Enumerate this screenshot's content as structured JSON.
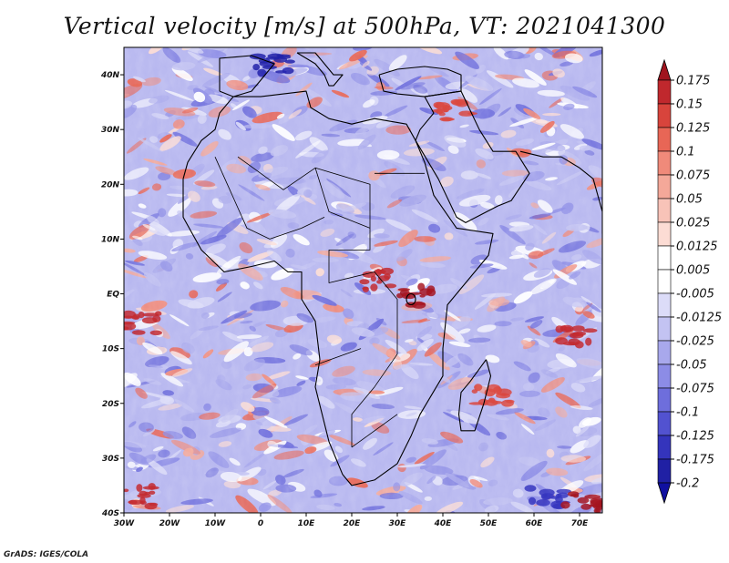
{
  "title": "Vertical velocity [m/s] at 500hPa, VT: 2021041300",
  "credit": "GrADS: IGES/COLA",
  "map": {
    "type": "filled contour map",
    "lon_range": [
      -30,
      75
    ],
    "lat_range": [
      -40,
      45
    ],
    "lon_ticks": [
      {
        "lon": -30,
        "label": "30W"
      },
      {
        "lon": -20,
        "label": "20W"
      },
      {
        "lon": -10,
        "label": "10W"
      },
      {
        "lon": 0,
        "label": "0"
      },
      {
        "lon": 10,
        "label": "10E"
      },
      {
        "lon": 20,
        "label": "20E"
      },
      {
        "lon": 30,
        "label": "30E"
      },
      {
        "lon": 40,
        "label": "40E"
      },
      {
        "lon": 50,
        "label": "50E"
      },
      {
        "lon": 60,
        "label": "60E"
      },
      {
        "lon": 70,
        "label": "70E"
      }
    ],
    "lat_ticks": [
      {
        "lat": 40,
        "label": "40N"
      },
      {
        "lat": 30,
        "label": "30N"
      },
      {
        "lat": 20,
        "label": "20N"
      },
      {
        "lat": 10,
        "label": "10N"
      },
      {
        "lat": 0,
        "label": "EQ"
      },
      {
        "lat": -10,
        "label": "10S"
      },
      {
        "lat": -20,
        "label": "20S"
      },
      {
        "lat": -30,
        "label": "30S"
      },
      {
        "lat": -40,
        "label": "40S"
      }
    ],
    "positive_color": "#e8433a",
    "negative_color": "#5a5ae6",
    "coastline_color": "#000000"
  },
  "colorbar": {
    "levels": [
      "0.175",
      "0.15",
      "0.125",
      "0.1",
      "0.075",
      "0.05",
      "0.025",
      "0.0125",
      "0.005",
      "-0.005",
      "-0.0125",
      "-0.025",
      "-0.05",
      "-0.075",
      "-0.1",
      "-0.125",
      "-0.175",
      "-0.2"
    ],
    "colors": [
      "#a0141e",
      "#c0282d",
      "#d8443c",
      "#e86656",
      "#f08a7a",
      "#f4a899",
      "#f8c3b8",
      "#fcdcd4",
      "#ffffff",
      "#ffffff",
      "#dcdcf8",
      "#c3c3f2",
      "#a8a8ec",
      "#8c8ce6",
      "#6e6edc",
      "#5252d0",
      "#3434bc",
      "#2020a4",
      "#1010a0"
    ]
  }
}
